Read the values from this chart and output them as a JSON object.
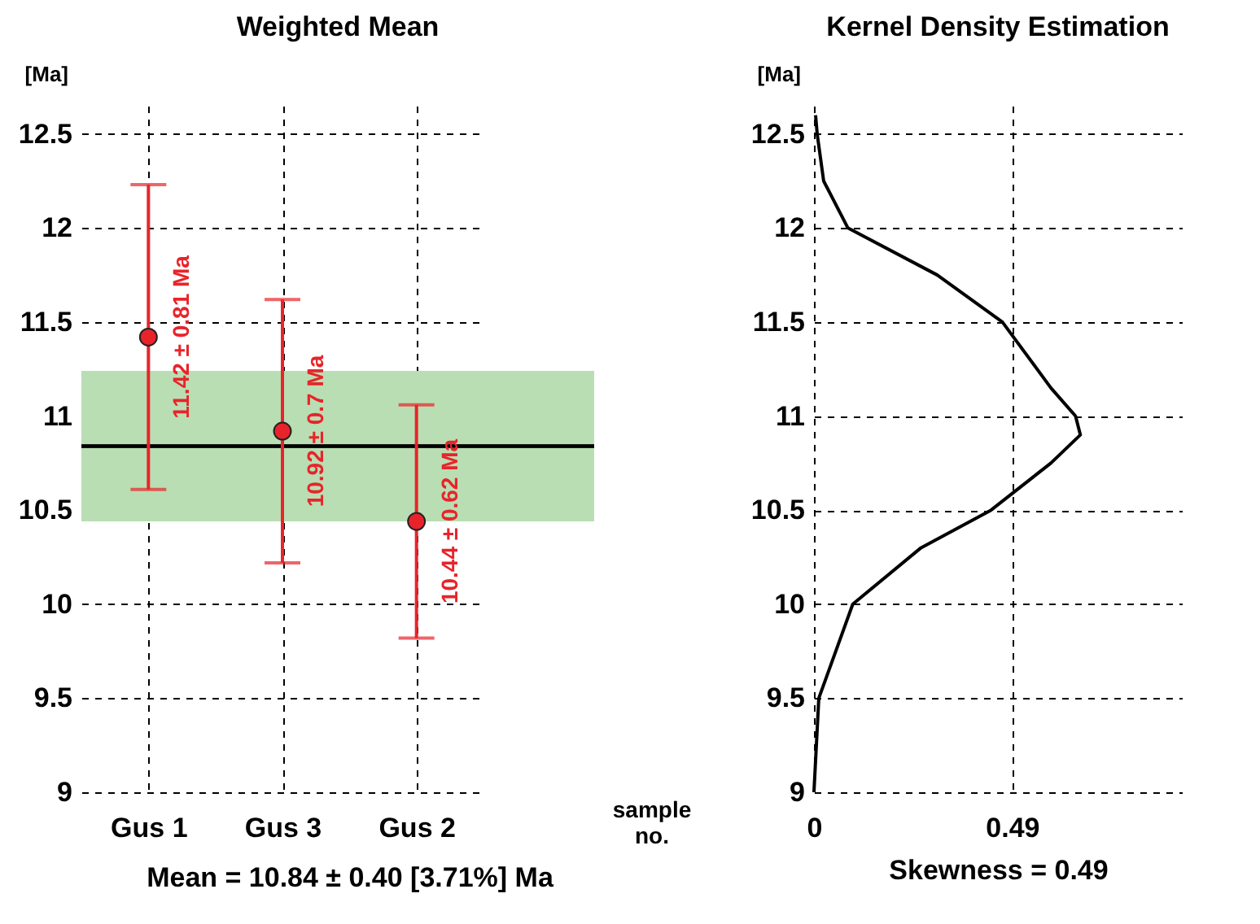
{
  "chart_data": [
    {
      "type": "scatter",
      "title": "Weighted Mean",
      "ylabel": "[Ma]",
      "xlabel": "sample no.",
      "categories": [
        "Gus 1",
        "Gus 3",
        "Gus 2"
      ],
      "values": [
        11.42,
        10.92,
        10.44
      ],
      "errors": [
        0.81,
        0.7,
        0.62
      ],
      "value_labels": [
        "11.42 ± 0.81 Ma",
        "10.92 ± 0.7 Ma",
        "10.44 ± 0.62 Ma"
      ],
      "color": "#e8242a",
      "marker": "circle",
      "ref_lines": [
        {
          "axis": "y",
          "value": 10.84,
          "color": "#000000"
        }
      ],
      "bands": [
        {
          "axis": "y",
          "from": 10.44,
          "to": 11.24,
          "color": "#b9deb3"
        }
      ],
      "ylim": [
        9,
        12.65
      ],
      "yticks": [
        9,
        9.5,
        10,
        10.5,
        11,
        11.5,
        12,
        12.5
      ],
      "grid": true,
      "annotations": [
        "Mean = 10.84 ± 0.40 [3.71%] Ma"
      ]
    },
    {
      "type": "line",
      "title": "Kernel Density Estimation",
      "ylabel": "[Ma]",
      "xlabel": "Skewness = 0.49",
      "series": [
        {
          "color": "#000000",
          "x": [
            0,
            0.012,
            0.096,
            0.265,
            0.438,
            0.586,
            0.659,
            0.647,
            0.586,
            0.466,
            0.305,
            0.084,
            0.024,
            0.008,
            0.004
          ],
          "values": [
            9,
            9.5,
            10,
            10.3,
            10.5,
            10.75,
            10.9,
            11,
            11.15,
            11.5,
            11.75,
            12,
            12.25,
            12.5,
            12.6
          ]
        }
      ],
      "xlim": [
        0,
        0.91
      ],
      "xticks": [
        0,
        0.49
      ],
      "ylim": [
        9,
        12.65
      ],
      "yticks": [
        9,
        9.5,
        10,
        10.5,
        11,
        11.5,
        12,
        12.5
      ],
      "grid": true
    }
  ]
}
